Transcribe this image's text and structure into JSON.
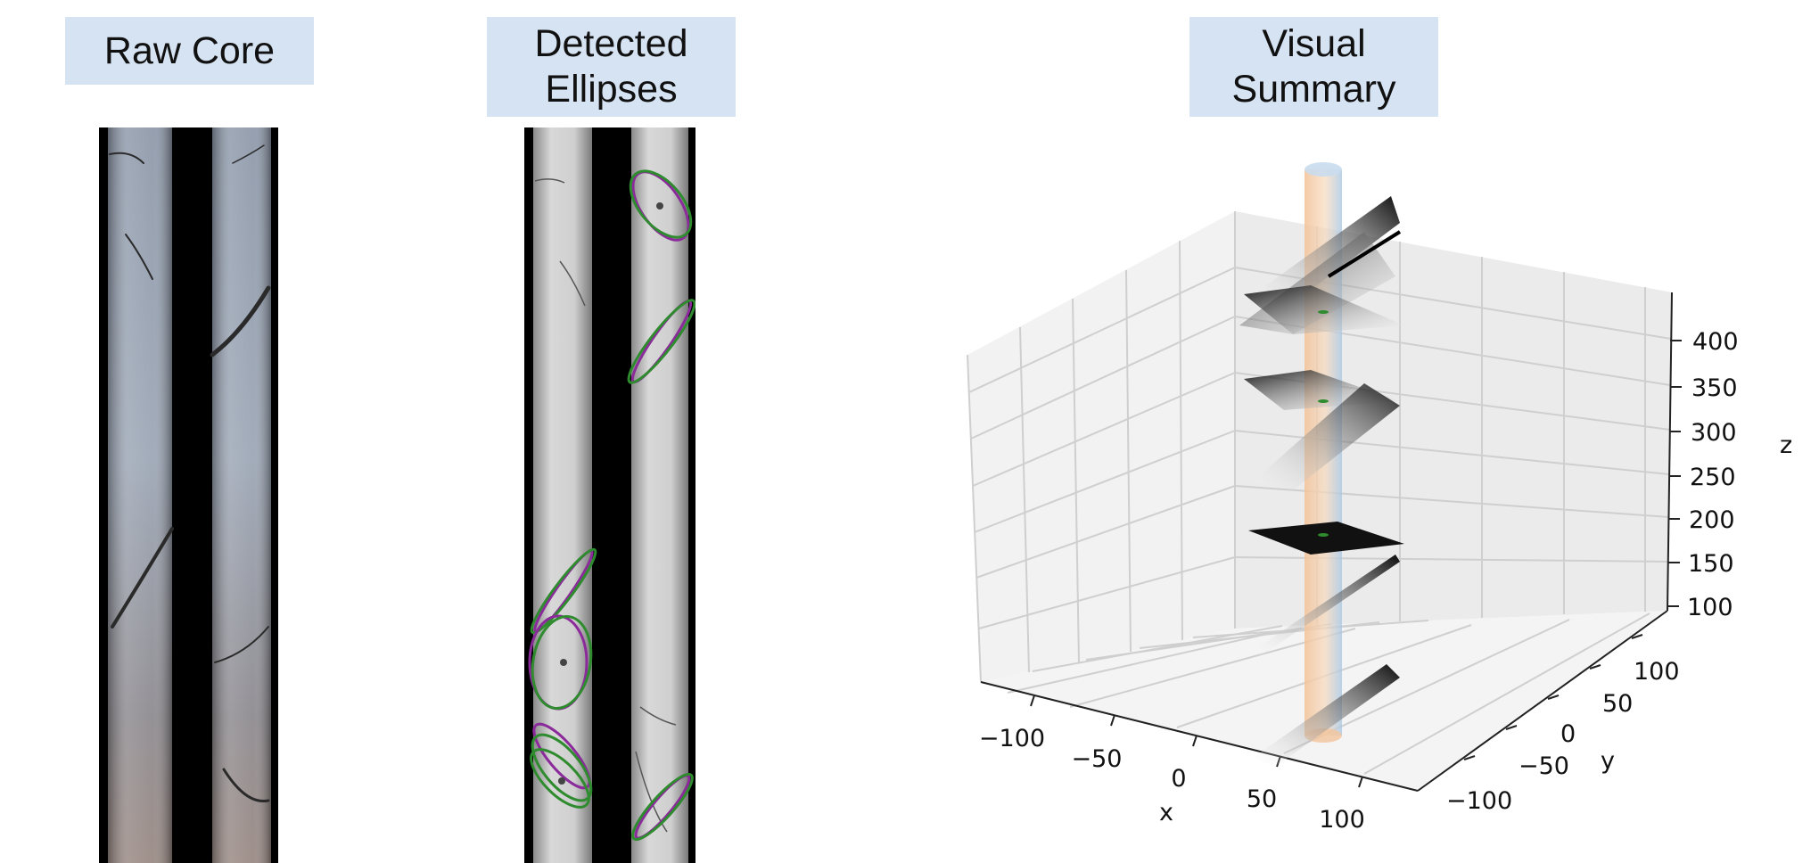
{
  "panels": {
    "raw_core": {
      "title": "Raw Core"
    },
    "detected": {
      "title_line1": "Detected",
      "title_line2": "Ellipses"
    },
    "summary": {
      "title_line1": "Visual",
      "title_line2": "Summary"
    }
  },
  "plot3d": {
    "z_ticks": [
      "400",
      "350",
      "300",
      "250",
      "200",
      "150",
      "100"
    ],
    "x_ticks": [
      "−100",
      "−50",
      "0",
      "50",
      "100"
    ],
    "y_ticks": [
      "100",
      "50",
      "0",
      "−50",
      "−100"
    ],
    "x_label": "x",
    "y_label": "y",
    "z_label": "z"
  },
  "colors": {
    "label_bg": "#d6e3f2",
    "ellipse_green": "#2e8b2e",
    "ellipse_purple": "#8b2a9a",
    "cylinder_orange": "#f2c49c",
    "cylinder_blue": "#a9c8e6"
  }
}
